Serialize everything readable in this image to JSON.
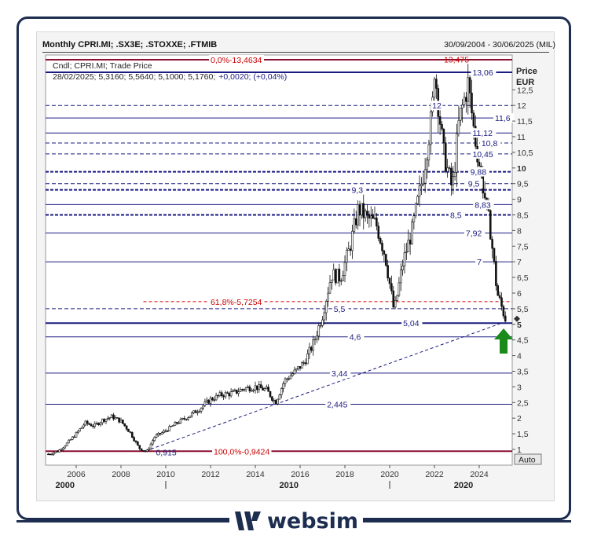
{
  "header": {
    "title": "Monthly CPRI.MI; .SX3E; .STOXXE; .FTMIB",
    "range": "30/09/2004 - 30/06/2025 (MIL)"
  },
  "legend": {
    "line1": "Cndl; CPRI.MI; Trade Price",
    "line2_prefix": "28/02/2025; 5,3160; 5,5640; 5,1000; 5,1760;",
    "line2_change": "+0,0020; (+0,04%)"
  },
  "axis": {
    "title_line1": "Price",
    "title_line2": "EUR",
    "auto_label": "Auto"
  },
  "brand": {
    "name": "websim"
  },
  "colors": {
    "navy": "#1a1a80",
    "red": "#cc0000",
    "frame": "#1c2d50",
    "arrow": "#1a8a1a"
  },
  "chart_data": {
    "type": "candlestick",
    "title": "Monthly CPRI.MI; .SX3E; .STOXXE; .FTMIB",
    "ylabel": "Price EUR",
    "x_range": [
      2004.75,
      2025.5
    ],
    "ylim": [
      0.62,
      14.0
    ],
    "y_ticks": [
      {
        "v": 1,
        "t": "1"
      },
      {
        "v": 1.5,
        "t": "1,5"
      },
      {
        "v": 2,
        "t": "2"
      },
      {
        "v": 2.5,
        "t": "2,5"
      },
      {
        "v": 3,
        "t": "3"
      },
      {
        "v": 3.5,
        "t": "3,5"
      },
      {
        "v": 4,
        "t": "4"
      },
      {
        "v": 4.5,
        "t": "4,5"
      },
      {
        "v": 5,
        "t": "5",
        "bold": true
      },
      {
        "v": 5.5,
        "t": "5,5"
      },
      {
        "v": 6,
        "t": "6"
      },
      {
        "v": 6.5,
        "t": "6,5"
      },
      {
        "v": 7,
        "t": "7"
      },
      {
        "v": 7.5,
        "t": "7,5"
      },
      {
        "v": 8,
        "t": "8"
      },
      {
        "v": 8.5,
        "t": "8,5"
      },
      {
        "v": 9,
        "t": "9"
      },
      {
        "v": 9.5,
        "t": "9,5"
      },
      {
        "v": 10,
        "t": "10",
        "bold": true
      },
      {
        "v": 10.5,
        "t": "10,5"
      },
      {
        "v": 11,
        "t": "11"
      },
      {
        "v": 11.5,
        "t": "11,5"
      },
      {
        "v": 12,
        "t": "12"
      },
      {
        "v": 12.5,
        "t": "12,5"
      }
    ],
    "x_ticks": [
      {
        "v": 2006,
        "t": "2006"
      },
      {
        "v": 2008,
        "t": "2008"
      },
      {
        "v": 2010,
        "t": "2010"
      },
      {
        "v": 2012,
        "t": "2012"
      },
      {
        "v": 2014,
        "t": "2014"
      },
      {
        "v": 2016,
        "t": "2016"
      },
      {
        "v": 2018,
        "t": "2018"
      },
      {
        "v": 2020,
        "t": "2020"
      },
      {
        "v": 2022,
        "t": "2022"
      },
      {
        "v": 2024,
        "t": "2024"
      }
    ],
    "x_major": [
      {
        "v": 2005.5,
        "t": "2000"
      },
      {
        "v": 2010,
        "t": "",
        "tick": true
      },
      {
        "v": 2015.5,
        "t": "2010"
      },
      {
        "v": 2020,
        "t": "",
        "tick": true
      },
      {
        "v": 2023.3,
        "t": "2020"
      }
    ],
    "levels": [
      {
        "v": 13.4634,
        "style": "maroon"
      },
      {
        "v": 13.06,
        "style": "thick-solid",
        "label": "13,06",
        "lx": 2023.7
      },
      {
        "v": 12.0,
        "style": "dash",
        "label": "12",
        "lx": 2021.9
      },
      {
        "v": 11.6,
        "style": "solid",
        "label": "11,6",
        "lx": 2024.7
      },
      {
        "v": 11.12,
        "style": "solid",
        "label": "11,12",
        "lx": 2023.7
      },
      {
        "v": 10.8,
        "style": "dash",
        "label": "10,8",
        "lx": 2024.1
      },
      {
        "v": 10.45,
        "style": "dash",
        "label": "10,45",
        "lx": 2023.7
      },
      {
        "v": 9.88,
        "style": "thick-dash",
        "label": "9,88",
        "lx": 2023.6
      },
      {
        "v": 9.5,
        "style": "dash",
        "label": "9,5",
        "lx": 2023.5
      },
      {
        "v": 9.3,
        "style": "thick-dash",
        "label": "9,3",
        "lx": 2018.3
      },
      {
        "v": 8.83,
        "style": "solid",
        "label": "8,83",
        "lx": 2023.8
      },
      {
        "v": 8.5,
        "style": "thick-dash",
        "label": "8,5",
        "lx": 2022.7
      },
      {
        "v": 7.92,
        "style": "solid",
        "label": "7,92",
        "lx": 2023.4
      },
      {
        "v": 7.0,
        "style": "solid",
        "label": "7",
        "lx": 2023.9
      },
      {
        "v": 5.5,
        "style": "dash",
        "label": "5,5",
        "lx": 2017.5
      },
      {
        "v": 5.04,
        "style": "thick-solid",
        "label": "5,04",
        "lx": 2020.6
      },
      {
        "v": 4.6,
        "style": "solid",
        "label": "4,6",
        "lx": 2018.2
      },
      {
        "v": 3.44,
        "style": "solid",
        "label": "3,44",
        "lx": 2017.4
      },
      {
        "v": 2.445,
        "style": "solid",
        "label": "2,445",
        "lx": 2017.2
      },
      {
        "v": 0.9424,
        "style": "maroon"
      }
    ],
    "fibo": [
      {
        "v": 13.4634,
        "label": "0,0%",
        "value": "13,4634",
        "x1": 2004.75
      },
      {
        "v": 5.7254,
        "label": "61,8%",
        "value": "5,7254",
        "x1": 2009.0
      },
      {
        "v": 0.9424,
        "label": "100,0%",
        "value": "0,9424",
        "x1": 2004.75
      }
    ],
    "peak_label": {
      "text": "13,475",
      "x": 2022.7,
      "v": 13.475
    },
    "low_label": {
      "text": "0,915",
      "x": 2009.7,
      "v": 0.915
    },
    "trendline": {
      "x1": 2009.1,
      "y1": 0.95,
      "x2": 2025.0,
      "y2": 5.04
    },
    "close": {
      "x": 2025.17,
      "v": 5.176
    },
    "series": [
      {
        "x": 2004.75,
        "v": 0.85
      },
      {
        "x": 2005.2,
        "v": 0.95
      },
      {
        "x": 2005.6,
        "v": 1.2
      },
      {
        "x": 2006.0,
        "v": 1.5
      },
      {
        "x": 2006.4,
        "v": 1.85
      },
      {
        "x": 2006.8,
        "v": 1.75
      },
      {
        "x": 2007.2,
        "v": 1.95
      },
      {
        "x": 2007.6,
        "v": 2.05
      },
      {
        "x": 2008.0,
        "v": 1.9
      },
      {
        "x": 2008.4,
        "v": 1.55
      },
      {
        "x": 2008.8,
        "v": 1.05
      },
      {
        "x": 2009.15,
        "v": 0.92
      },
      {
        "x": 2009.5,
        "v": 1.4
      },
      {
        "x": 2010.0,
        "v": 1.6
      },
      {
        "x": 2010.5,
        "v": 1.85
      },
      {
        "x": 2011.0,
        "v": 2.05
      },
      {
        "x": 2011.5,
        "v": 2.3
      },
      {
        "x": 2012.0,
        "v": 2.6
      },
      {
        "x": 2012.5,
        "v": 2.75
      },
      {
        "x": 2013.0,
        "v": 2.8
      },
      {
        "x": 2013.5,
        "v": 2.95
      },
      {
        "x": 2014.0,
        "v": 3.0
      },
      {
        "x": 2014.5,
        "v": 2.9
      },
      {
        "x": 2014.9,
        "v": 2.5
      },
      {
        "x": 2015.3,
        "v": 3.2
      },
      {
        "x": 2015.8,
        "v": 3.5
      },
      {
        "x": 2016.2,
        "v": 3.8
      },
      {
        "x": 2016.6,
        "v": 4.4
      },
      {
        "x": 2017.0,
        "v": 5.3
      },
      {
        "x": 2017.4,
        "v": 6.6
      },
      {
        "x": 2017.8,
        "v": 6.5
      },
      {
        "x": 2018.2,
        "v": 7.4
      },
      {
        "x": 2018.6,
        "v": 8.7
      },
      {
        "x": 2019.0,
        "v": 8.4
      },
      {
        "x": 2019.4,
        "v": 8.2
      },
      {
        "x": 2019.8,
        "v": 7.2
      },
      {
        "x": 2020.2,
        "v": 5.4
      },
      {
        "x": 2020.6,
        "v": 7.0
      },
      {
        "x": 2021.0,
        "v": 8.0
      },
      {
        "x": 2021.5,
        "v": 9.8
      },
      {
        "x": 2021.9,
        "v": 11.8
      },
      {
        "x": 2022.0,
        "v": 13.2
      },
      {
        "x": 2022.4,
        "v": 10.5
      },
      {
        "x": 2022.8,
        "v": 9.3
      },
      {
        "x": 2023.1,
        "v": 11.5
      },
      {
        "x": 2023.5,
        "v": 12.7
      },
      {
        "x": 2023.8,
        "v": 11.0
      },
      {
        "x": 2024.1,
        "v": 9.7
      },
      {
        "x": 2024.5,
        "v": 8.0
      },
      {
        "x": 2024.8,
        "v": 6.0
      },
      {
        "x": 2025.17,
        "v": 5.18
      }
    ]
  }
}
